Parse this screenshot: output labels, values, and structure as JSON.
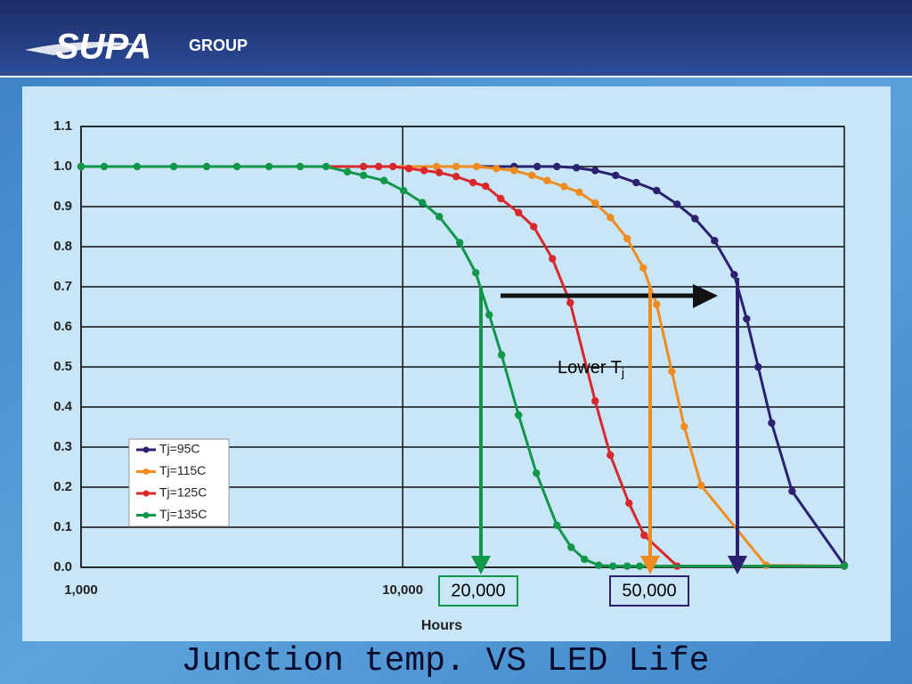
{
  "brand": {
    "name": "SUPA",
    "suffix": "GROUP"
  },
  "chart_data": {
    "type": "line",
    "title": "Junction temp. VS LED Life",
    "x_label": "Hours",
    "log_x": true,
    "grid": true,
    "legend": "lower left",
    "xlim": [
      1000,
      236000
    ],
    "xticks": [
      {
        "value": 1000,
        "label": "1,000"
      },
      {
        "value": 10000,
        "label": "10,000"
      }
    ],
    "ylim": [
      0,
      1.1
    ],
    "yticks": [
      {
        "value": 0,
        "label": "0.0"
      },
      0.1,
      0.2,
      0.3,
      0.4,
      0.5,
      0.6,
      0.7,
      0.8,
      0.9,
      {
        "value": 1,
        "label": "1.0"
      },
      1.1
    ],
    "annotation": {
      "text": "Lower T",
      "subscript": "j"
    },
    "callouts": [
      "20,000",
      "50,000"
    ],
    "series": [
      {
        "name": "Tj=95C",
        "color": "#2b2170",
        "x": [
          1000,
          22200,
          26200,
          30150,
          34690,
          39660,
          45920,
          53190,
          61580,
          71320,
          81030,
          93220,
          107300,
          117300,
          127400,
          140300,
          162400,
          236000
        ],
        "values": [
          1,
          1,
          1,
          1,
          0.997,
          0.99,
          0.978,
          0.96,
          0.94,
          0.906,
          0.87,
          0.815,
          0.73,
          0.62,
          0.5,
          0.36,
          0.19,
          0.005
        ]
      },
      {
        "name": "Tj=115C",
        "color": "#f08c1e",
        "x": [
          1000,
          12740,
          14660,
          16980,
          19540,
          22200,
          25220,
          28110,
          31730,
          35370,
          39660,
          44210,
          49890,
          55970,
          61580,
          68650,
          75060,
          84720,
          134900,
          236000
        ],
        "values": [
          1,
          1,
          1,
          1,
          0.995,
          0.99,
          0.978,
          0.965,
          0.95,
          0.936,
          0.909,
          0.873,
          0.82,
          0.747,
          0.656,
          0.489,
          0.351,
          0.204,
          0.005,
          0.003
        ]
      },
      {
        "name": "Tj=125C",
        "color": "#d9282b",
        "x": [
          1000,
          7551,
          8418,
          9322,
          10450,
          11660,
          12990,
          14660,
          16550,
          18100,
          20170,
          22920,
          25540,
          29200,
          33180,
          39660,
          44210,
          50530,
          56330,
          71320,
          236000
        ],
        "values": [
          1,
          1,
          1,
          1,
          0.995,
          0.99,
          0.985,
          0.975,
          0.96,
          0.951,
          0.92,
          0.885,
          0.85,
          0.77,
          0.66,
          0.415,
          0.28,
          0.16,
          0.08,
          0.003,
          0.003
        ]
      },
      {
        "name": "Tj=135C",
        "color": "#12964a",
        "x": [
          1000,
          1180,
          1494,
          1941,
          2458,
          3053,
          3841,
          4800,
          5777,
          6732,
          7551,
          8748,
          10060,
          11510,
          12990,
          15040,
          16870,
          18570,
          20300,
          22920,
          26040,
          30150,
          33390,
          36740,
          40690,
          45060,
          49890,
          54560,
          236000
        ],
        "values": [
          1,
          1,
          1,
          1,
          1,
          1,
          1,
          1,
          1,
          0.987,
          0.978,
          0.965,
          0.94,
          0.91,
          0.875,
          0.81,
          0.735,
          0.63,
          0.53,
          0.38,
          0.235,
          0.105,
          0.05,
          0.02,
          0.005,
          0.003,
          0.003,
          0.003,
          0.003
        ]
      }
    ]
  }
}
